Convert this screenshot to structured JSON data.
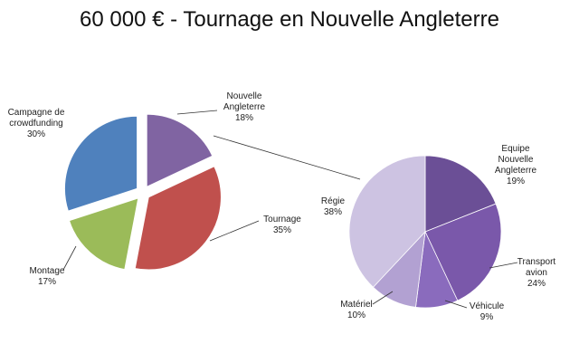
{
  "chart_data": [
    {
      "type": "pie",
      "title": "60 000 € - Tournage en Nouvelle Angleterre",
      "slices": [
        {
          "name": "Nouvelle Angleterre",
          "lines": [
            "Nouvelle",
            "Angleterre"
          ],
          "value": 18,
          "pct_label": "18%",
          "color": "#8064a2"
        },
        {
          "name": "Tournage",
          "lines": [
            "Tournage"
          ],
          "value": 35,
          "pct_label": "35%",
          "color": "#c0504d"
        },
        {
          "name": "Montage",
          "lines": [
            "Montage"
          ],
          "value": 17,
          "pct_label": "17%",
          "color": "#9bbb59"
        },
        {
          "name": "Campagne de crowdfunding",
          "lines": [
            "Campagne de",
            "crowdfunding"
          ],
          "value": 30,
          "pct_label": "30%",
          "color": "#4f81bd"
        }
      ],
      "exploded": true
    },
    {
      "type": "pie",
      "note": "breakdown of Nouvelle Angleterre slice",
      "slices": [
        {
          "name": "Equipe Nouvelle Angleterre",
          "lines": [
            "Equipe",
            "Nouvelle",
            "Angleterre"
          ],
          "value": 19,
          "pct_label": "19%",
          "color": "#6b4f96"
        },
        {
          "name": "Transport avion",
          "lines": [
            "Transport",
            "avion"
          ],
          "value": 24,
          "pct_label": "24%",
          "color": "#7a58aa"
        },
        {
          "name": "Véhicule",
          "lines": [
            "Véhicule"
          ],
          "value": 9,
          "pct_label": "9%",
          "color": "#8a6bbd"
        },
        {
          "name": "Matériel",
          "lines": [
            "Matériel"
          ],
          "value": 10,
          "pct_label": "10%",
          "color": "#b2a1d2"
        },
        {
          "name": "Régie",
          "lines": [
            "Régie"
          ],
          "value": 38,
          "pct_label": "38%",
          "color": "#cdc3e2"
        }
      ]
    }
  ]
}
